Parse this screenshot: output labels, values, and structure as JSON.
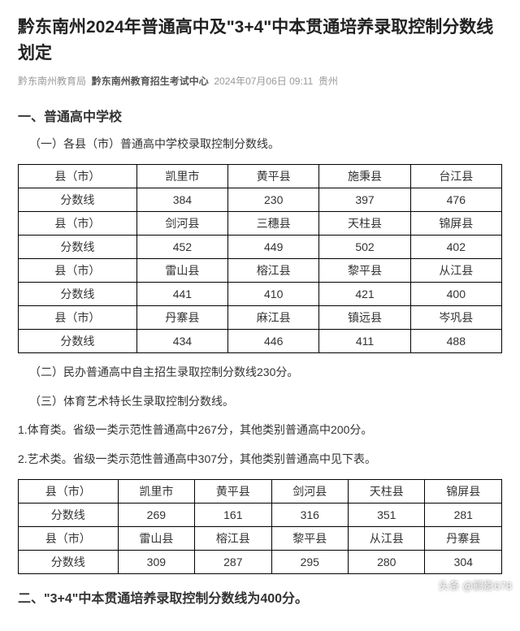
{
  "header": {
    "title": "黔东南州2024年普通高中及\"3+4\"中本贯通培养录取控制分数线划定",
    "source1": "黔东南州教育局",
    "source2": "黔东南州教育招生考试中心",
    "date": "2024年07月06日 09:11",
    "location": "贵州"
  },
  "section1": {
    "heading": "一、普通高中学校",
    "sub1": "（一）各县（市）普通高中学校录取控制分数线。",
    "sub2": "（二）民办普通高中自主招生录取控制分数线230分。",
    "sub3": "（三）体育艺术特长生录取控制分数线。",
    "item1": "1.体育类。省级一类示范性普通高中267分，其他类别普通高中200分。",
    "item2": "2.艺术类。省级一类示范性普通高中307分，其他类别普通高中见下表。"
  },
  "table1": {
    "label_county": "县（市）",
    "label_score": "分数线",
    "r1": [
      "凯里市",
      "黄平县",
      "施秉县",
      "台江县"
    ],
    "s1": [
      "384",
      "230",
      "397",
      "476"
    ],
    "r2": [
      "剑河县",
      "三穗县",
      "天柱县",
      "锦屏县"
    ],
    "s2": [
      "452",
      "449",
      "502",
      "402"
    ],
    "r3": [
      "雷山县",
      "榕江县",
      "黎平县",
      "从江县"
    ],
    "s3": [
      "441",
      "410",
      "421",
      "400"
    ],
    "r4": [
      "丹寨县",
      "麻江县",
      "镇远县",
      "岑巩县"
    ],
    "s4": [
      "434",
      "446",
      "411",
      "488"
    ]
  },
  "table2": {
    "label_county": "县（市）",
    "label_score": "分数线",
    "r1": [
      "凯里市",
      "黄平县",
      "剑河县",
      "天柱县",
      "锦屏县"
    ],
    "s1": [
      "269",
      "161",
      "316",
      "351",
      "281"
    ],
    "r2": [
      "雷山县",
      "榕江县",
      "黎平县",
      "从江县",
      "丹寨县"
    ],
    "s2": [
      "309",
      "287",
      "295",
      "280",
      "304"
    ]
  },
  "section2": {
    "heading": "二、\"3+4\"中本贯通培养录取控制分数线为400分。"
  },
  "watermark": "头条 @鹤影678"
}
